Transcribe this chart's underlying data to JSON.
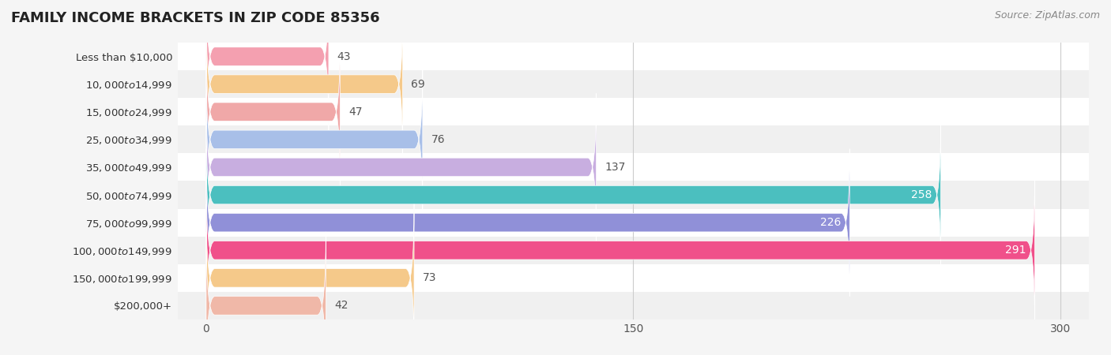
{
  "title": "FAMILY INCOME BRACKETS IN ZIP CODE 85356",
  "source": "Source: ZipAtlas.com",
  "categories": [
    "Less than $10,000",
    "$10,000 to $14,999",
    "$15,000 to $24,999",
    "$25,000 to $34,999",
    "$35,000 to $49,999",
    "$50,000 to $74,999",
    "$75,000 to $99,999",
    "$100,000 to $149,999",
    "$150,000 to $199,999",
    "$200,000+"
  ],
  "values": [
    43,
    69,
    47,
    76,
    137,
    258,
    226,
    291,
    73,
    42
  ],
  "bar_colors": [
    "#f4a0b0",
    "#f5c98a",
    "#f0a8a8",
    "#a8bfe8",
    "#c8aee0",
    "#4bbfbf",
    "#9090d8",
    "#f0508a",
    "#f5c98a",
    "#f0b8a8"
  ],
  "xlim": [
    -10,
    310
  ],
  "xticks": [
    0,
    150,
    300
  ],
  "bar_height": 0.65,
  "label_color_threshold": 150,
  "bg_color": "#f5f5f5",
  "row_colors": [
    "#ffffff",
    "#f0f0f0"
  ],
  "title_fontsize": 13,
  "source_fontsize": 9,
  "label_fontsize": 10,
  "tick_fontsize": 10,
  "ytick_fontsize": 9.5
}
